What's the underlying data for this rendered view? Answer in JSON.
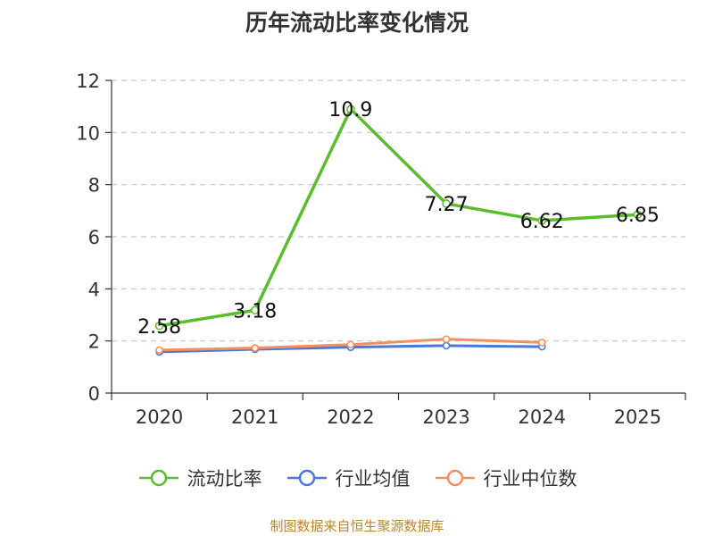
{
  "chart_data": {
    "type": "line",
    "title": "历年流动比率变化情况",
    "categories": [
      "2020",
      "2021",
      "2022",
      "2023",
      "2024",
      "2025"
    ],
    "ylim": [
      0,
      12
    ],
    "yticks": [
      0,
      2,
      4,
      6,
      8,
      10,
      12
    ],
    "grid": true,
    "legend_position": "bottom",
    "series": [
      {
        "name": "流动比率",
        "color": "#5bbd2b",
        "values": [
          2.58,
          3.18,
          10.9,
          7.27,
          6.62,
          6.85
        ],
        "labels": [
          "2.58",
          "3.18",
          "10.9",
          "7.27",
          "6.62",
          "6.85"
        ]
      },
      {
        "name": "行业均值",
        "color": "#4a78d8",
        "values": [
          1.58,
          1.68,
          1.76,
          1.82,
          1.78,
          null
        ]
      },
      {
        "name": "行业中位数",
        "color": "#f4905e",
        "values": [
          1.65,
          1.73,
          1.86,
          2.07,
          1.94,
          null
        ]
      }
    ]
  },
  "source": "制图数据来自恒生聚源数据库"
}
